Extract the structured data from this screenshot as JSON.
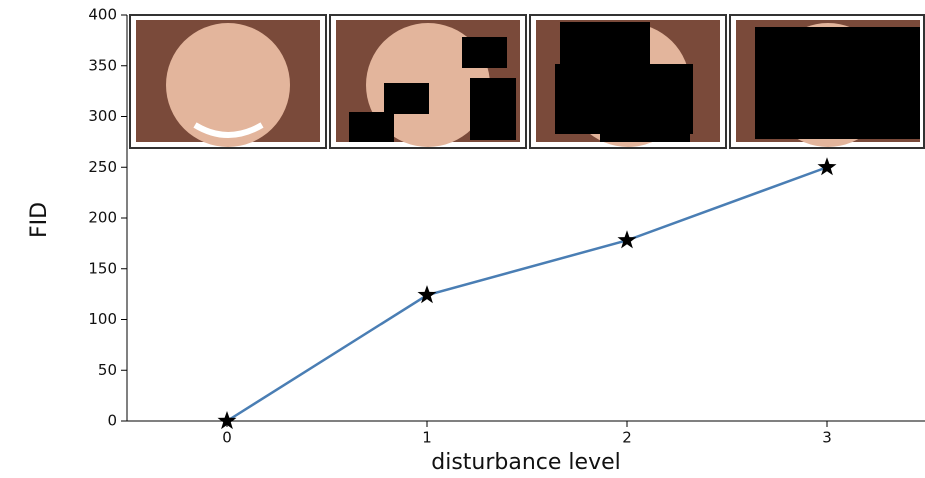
{
  "chart_data": {
    "type": "line",
    "xlabel": "disturbance level",
    "ylabel": "FID",
    "x": [
      0,
      1,
      2,
      3
    ],
    "values": [
      0,
      124,
      178,
      250
    ],
    "color": "#4a7eb4",
    "marker": "star",
    "marker_color": "#000000",
    "xlim": [
      -0.5,
      3.49
    ],
    "ylim": [
      0,
      400
    ],
    "xticks": [
      0,
      1,
      2,
      3
    ],
    "yticks": [
      0,
      50,
      100,
      150,
      200,
      250,
      300,
      350,
      400
    ]
  }
}
